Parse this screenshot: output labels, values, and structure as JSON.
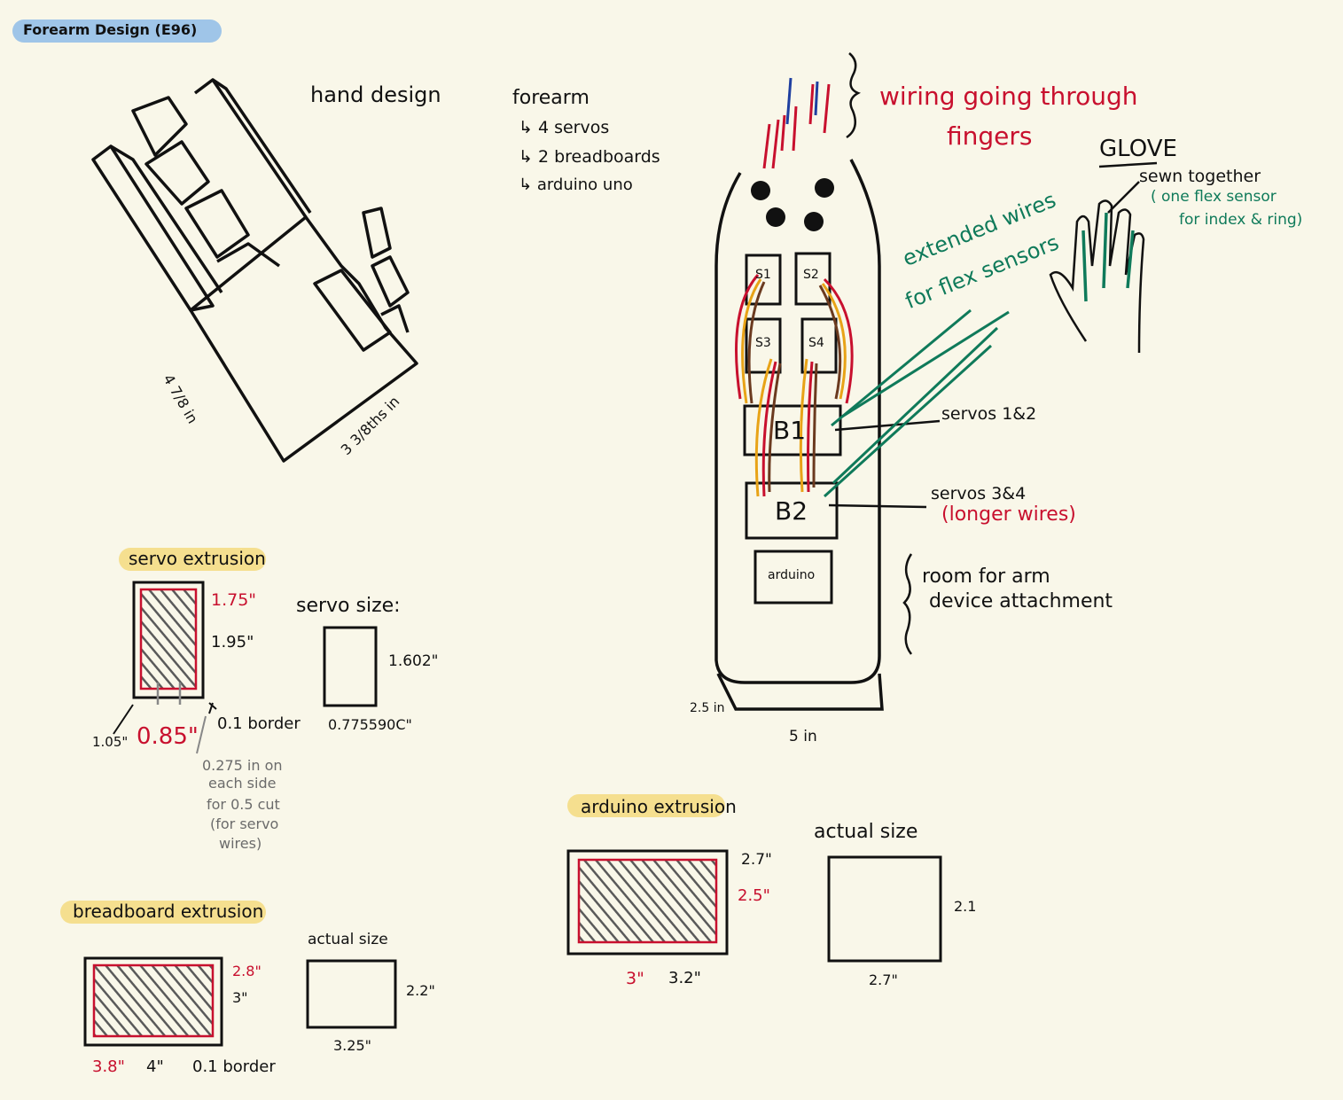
{
  "colors": {
    "background": "#f9f7e9",
    "ink": "#111111",
    "red": "#c8102e",
    "green": "#0f7a5a",
    "gray": "#6b6b6b",
    "blue_highlight": "#9fc5e8",
    "yellow_highlight": "#f5df8f",
    "shading": "#5a5a5a"
  },
  "header": {
    "title": "Forearm Design (E96)"
  },
  "hand": {
    "title": "hand design",
    "dim_length": "4 7/8 in",
    "dim_width": "3 3/8ths in"
  },
  "forearm_notes": {
    "title": "forearm",
    "items": [
      "4 servos",
      "2 breadboards",
      "arduino uno"
    ]
  },
  "forearm": {
    "wiring_note": [
      "wiring going through",
      "fingers"
    ],
    "servo_labels": [
      "S1",
      "S2",
      "S3",
      "S4"
    ],
    "breadboard_labels": [
      "B1",
      "B2"
    ],
    "arduino_label": "arduino",
    "servos_1_2": "servos 1&2",
    "servos_3_4": "servos 3&4",
    "longer_wires": "(longer wires)",
    "extended_wires": [
      "extended wires",
      "for flex sensors"
    ],
    "room_note": [
      "room for arm",
      "device attachment"
    ],
    "dim_depth": "2.5 in",
    "dim_width": "5 in"
  },
  "glove": {
    "title": "GLOVE",
    "sewn": "sewn together",
    "flex_note": [
      "( one flex sensor",
      "for index & ring)"
    ]
  },
  "servo_extrusion": {
    "title": "servo extrusion",
    "inner_height": "1.75\"",
    "outer_height": "1.95\"",
    "outer_width": "1.05\"",
    "inner_width": "0.85\"",
    "border": "0.1 border",
    "cut_note": [
      "0.275 in on",
      "each side",
      "for 0.5 cut",
      "(for servo",
      "wires)"
    ],
    "size_title": "servo size:",
    "size_height": "1.602\"",
    "size_width": "0.775590C\""
  },
  "breadboard_extrusion": {
    "title": "breadboard extrusion",
    "inner_height": "2.8\"",
    "outer_height": "3\"",
    "inner_width": "3.8\"",
    "outer_width": "4\"",
    "border": "0.1 border",
    "actual_title": "actual size",
    "actual_height": "2.2\"",
    "actual_width": "3.25\""
  },
  "arduino_extrusion": {
    "title": "arduino extrusion",
    "outer_height": "2.7\"",
    "inner_height": "2.5\"",
    "inner_width": "3\"",
    "outer_width": "3.2\"",
    "actual_title": "actual size",
    "actual_height": "2.1",
    "actual_width": "2.7\""
  }
}
